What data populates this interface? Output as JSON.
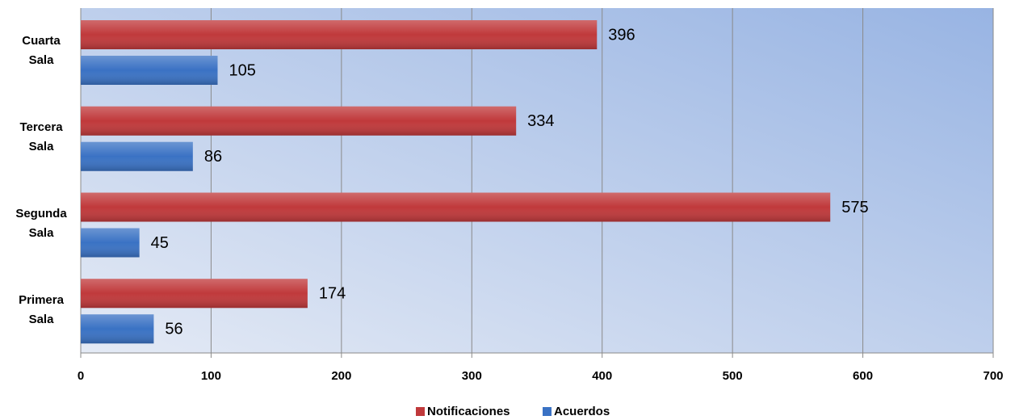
{
  "chart_data": {
    "type": "bar",
    "orientation": "horizontal",
    "categories": [
      "Cuarta Sala",
      "Tercera Sala",
      "Segunda Sala",
      "Primera Sala"
    ],
    "series": [
      {
        "name": "Notificaciones",
        "color": "#c0393b",
        "values": [
          396,
          334,
          575,
          174
        ]
      },
      {
        "name": "Acuerdos",
        "color": "#3a72c4",
        "values": [
          105,
          86,
          45,
          56
        ]
      }
    ],
    "xlim": [
      0,
      700
    ],
    "xticks": [
      0,
      100,
      200,
      300,
      400,
      500,
      600,
      700
    ],
    "grid": true,
    "legend": "bottom"
  }
}
